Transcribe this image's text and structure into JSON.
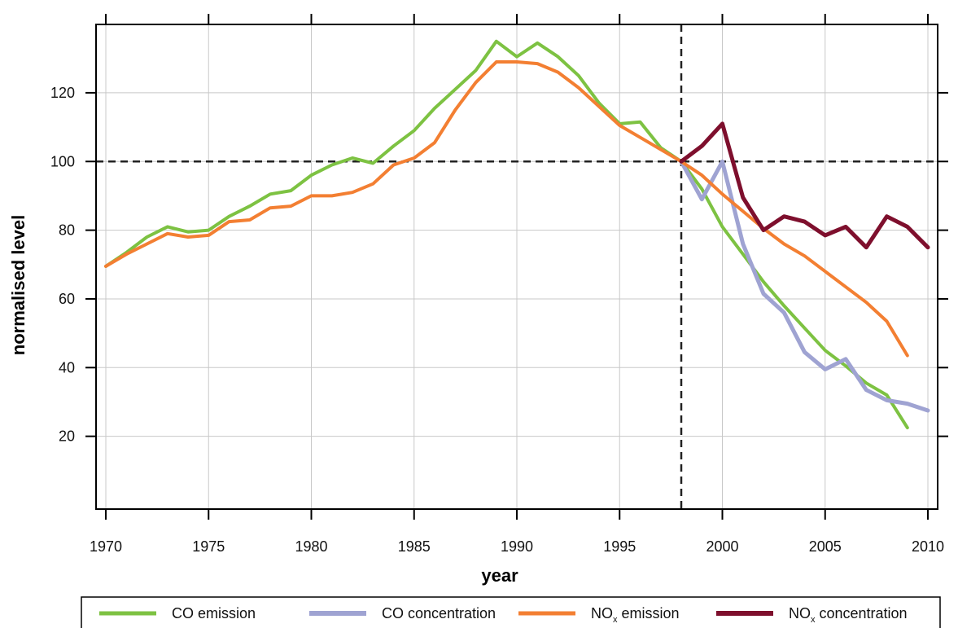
{
  "chart_data": {
    "type": "line",
    "title": "",
    "xlabel": "year",
    "ylabel": "normalised level",
    "xlim": [
      1970,
      2010
    ],
    "ylim": [
      0,
      138
    ],
    "x_ticks": [
      1970,
      1975,
      1980,
      1985,
      1990,
      1995,
      2000,
      2005,
      2010
    ],
    "y_ticks": [
      20,
      40,
      60,
      80,
      100,
      120
    ],
    "grid": true,
    "legend_position": "bottom",
    "reference_lines": {
      "y": 100,
      "x": 1998
    },
    "series": [
      {
        "name": "CO emission",
        "color": "#7dc242",
        "x": [
          1970,
          1971,
          1972,
          1973,
          1974,
          1975,
          1976,
          1977,
          1978,
          1979,
          1980,
          1981,
          1982,
          1983,
          1984,
          1985,
          1986,
          1987,
          1988,
          1989,
          1990,
          1991,
          1992,
          1993,
          1994,
          1995,
          1996,
          1997,
          1998,
          1999,
          2000,
          2001,
          2002,
          2003,
          2004,
          2005,
          2006,
          2007,
          2008,
          2009
        ],
        "values": [
          69.5,
          73.5,
          78,
          81,
          79.5,
          80,
          84,
          87,
          90.5,
          91.5,
          96,
          99,
          101,
          99.5,
          104.5,
          109,
          115.5,
          121,
          126.5,
          135,
          130.5,
          134.5,
          130.5,
          125,
          117,
          111,
          111.5,
          104,
          100,
          92,
          81,
          73,
          65,
          58,
          51.5,
          45,
          40.5,
          35.5,
          32,
          22.5
        ]
      },
      {
        "name": "CO concentration",
        "color": "#9fa3d2",
        "x": [
          1998,
          1999,
          2000,
          2001,
          2002,
          2003,
          2004,
          2005,
          2006,
          2007,
          2008,
          2009,
          2010
        ],
        "values": [
          100,
          89,
          100,
          76,
          61.5,
          56,
          44.5,
          39.5,
          42.5,
          33.5,
          30.5,
          29.5,
          27.5
        ]
      },
      {
        "name": "NO",
        "sub": "x",
        "suffix": " emission",
        "color": "#f37f32",
        "x": [
          1970,
          1971,
          1972,
          1973,
          1974,
          1975,
          1976,
          1977,
          1978,
          1979,
          1980,
          1981,
          1982,
          1983,
          1984,
          1985,
          1986,
          1987,
          1988,
          1989,
          1990,
          1991,
          1992,
          1993,
          1994,
          1995,
          1996,
          1997,
          1998,
          1999,
          2000,
          2001,
          2002,
          2003,
          2004,
          2005,
          2006,
          2007,
          2008,
          2009
        ],
        "values": [
          69.5,
          73,
          76,
          79,
          78,
          78.5,
          82.5,
          83,
          86.5,
          87,
          90,
          90,
          91,
          93.5,
          99,
          101,
          105.5,
          115,
          123,
          129,
          129,
          128.5,
          126,
          121.5,
          116,
          110.5,
          107,
          103.5,
          100,
          96,
          90.5,
          85.5,
          80.5,
          76,
          72.5,
          68,
          63.5,
          59,
          53.5,
          43.5
        ]
      },
      {
        "name": "NO",
        "sub": "x",
        "suffix": " concentration",
        "color": "#7e0f2d",
        "x": [
          1998,
          1999,
          2000,
          2001,
          2002,
          2003,
          2004,
          2005,
          2006,
          2007,
          2008,
          2009,
          2010
        ],
        "values": [
          100,
          104.5,
          111,
          89.5,
          80,
          84,
          82.5,
          78.5,
          81,
          75,
          84,
          81,
          75
        ]
      }
    ]
  }
}
